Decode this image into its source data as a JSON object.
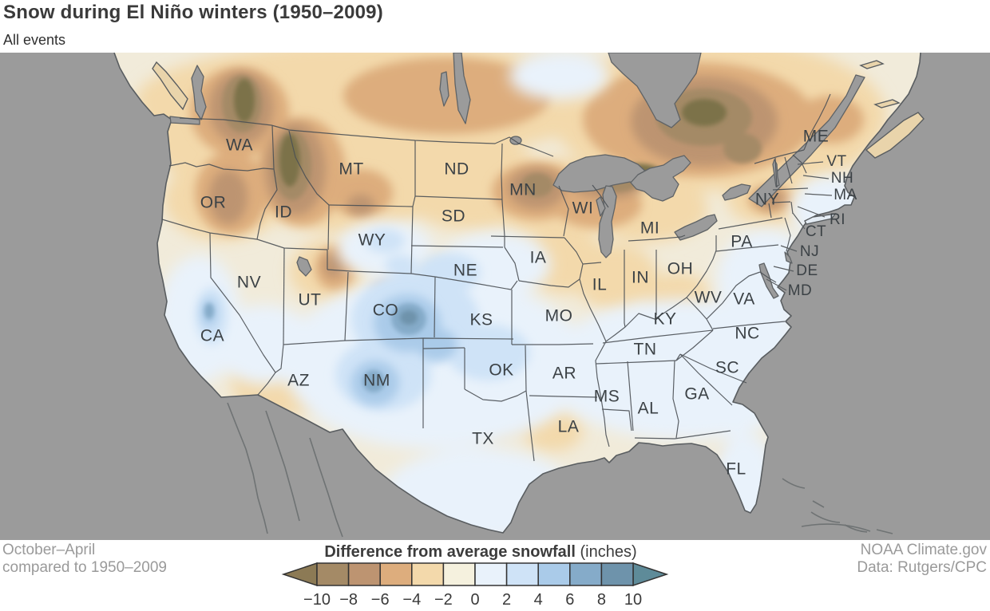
{
  "header": {
    "title": "Snow during El Niño winters (1950–2009)",
    "subtitle": "All events"
  },
  "map": {
    "colors": {
      "ocean": "#9b9b9b",
      "land_base": "#f1ebda",
      "border": "#4b5055",
      "coast": "#595d60",
      "lake_fill": "#9b9b9b",
      "label": "#3c4246",
      "extreme_negative": "#7b7249",
      "extreme_positive": "#5e8b99"
    },
    "state_labels": [
      "WA",
      "OR",
      "CA",
      "NV",
      "ID",
      "MT",
      "WY",
      "UT",
      "AZ",
      "NM",
      "CO",
      "ND",
      "SD",
      "NE",
      "KS",
      "OK",
      "TX",
      "MN",
      "IA",
      "MO",
      "AR",
      "LA",
      "WI",
      "IL",
      "MS",
      "MI",
      "IN",
      "KY",
      "TN",
      "AL",
      "OH",
      "GA",
      "WV",
      "VA",
      "NC",
      "SC",
      "FL",
      "PA",
      "NY",
      "ME",
      "VT",
      "NH",
      "MA",
      "RI",
      "CT",
      "NJ",
      "DE",
      "MD"
    ]
  },
  "legend": {
    "title": "Difference from average snowfall",
    "unit": "(inches)",
    "ticks": [
      "−10",
      "−8",
      "−6",
      "−4",
      "−2",
      "0",
      "2",
      "4",
      "6",
      "8",
      "10"
    ],
    "segment_colors": [
      "#a48a66",
      "#bd9471",
      "#ddad7d",
      "#f3d9ab",
      "#f5f1de",
      "#e9f2fb",
      "#cfe3f7",
      "#aacbe9",
      "#85abc9",
      "#6e93ab"
    ],
    "arrow_left_color": "#8c7a55",
    "arrow_right_color": "#5e8b99"
  },
  "footer": {
    "period_line1": "October–April",
    "period_line2": "compared to 1950–2009",
    "credit_line1": "NOAA Climate.gov",
    "credit_line2": "Data: Rutgers/CPC"
  }
}
